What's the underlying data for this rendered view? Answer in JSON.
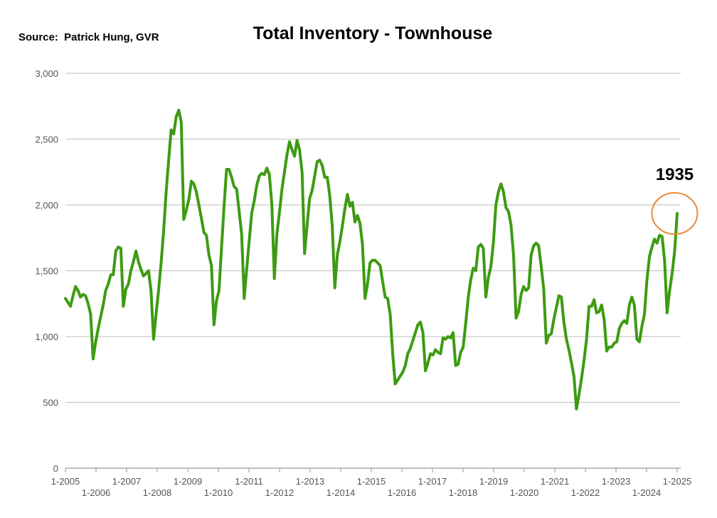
{
  "source": "Source:  Patrick Hung, GVR",
  "chart_data": {
    "type": "line",
    "title": "Total Inventory - Townhouse",
    "xlabel": "",
    "ylabel": "",
    "ylim": [
      0,
      3000
    ],
    "yticks": [
      0,
      500,
      1000,
      1500,
      2000,
      2500,
      3000
    ],
    "ytick_labels": [
      "0",
      "500",
      "1,000",
      "1,500",
      "2,000",
      "2,500",
      "3,000"
    ],
    "xlim": [
      0,
      243
    ],
    "xtick_labels": [
      "1-2005",
      "1-2006",
      "1-2007",
      "1-2008",
      "1-2009",
      "1-2010",
      "1-2011",
      "1-2012",
      "1-2013",
      "1-2014",
      "1-2015",
      "1-2016",
      "1-2017",
      "1-2018",
      "1-2019",
      "1-2020",
      "1-2021",
      "1-2022",
      "1-2023",
      "1-2024",
      "1-2025"
    ],
    "grid": true,
    "colors": {
      "line": "#3d9b12",
      "grid": "#c8c8c8",
      "callout": "#e98a3c"
    },
    "annotation": {
      "text": "1935",
      "x": 242,
      "y": 1935
    },
    "series": [
      {
        "values": [
          1290,
          1260,
          1230,
          1310,
          1380,
          1350,
          1300,
          1320,
          1310,
          1250,
          1170,
          830,
          960,
          1060,
          1150,
          1240,
          1350,
          1400,
          1470,
          1470,
          1650,
          1680,
          1670,
          1230,
          1360,
          1400,
          1500,
          1570,
          1650,
          1570,
          1510,
          1460,
          1480,
          1500,
          1350,
          980,
          1170,
          1350,
          1560,
          1800,
          2100,
          2340,
          2570,
          2540,
          2670,
          2720,
          2630,
          1890,
          1960,
          2040,
          2180,
          2160,
          2100,
          2000,
          1900,
          1790,
          1770,
          1620,
          1540,
          1090,
          1270,
          1350,
          1670,
          1990,
          2270,
          2270,
          2210,
          2140,
          2120,
          1950,
          1780,
          1290,
          1510,
          1730,
          1940,
          2030,
          2150,
          2220,
          2240,
          2230,
          2280,
          2230,
          2000,
          1440,
          1780,
          1940,
          2120,
          2250,
          2380,
          2480,
          2420,
          2370,
          2490,
          2420,
          2250,
          1630,
          1850,
          2050,
          2110,
          2220,
          2330,
          2340,
          2300,
          2210,
          2210,
          2070,
          1840,
          1370,
          1620,
          1720,
          1840,
          1970,
          2080,
          1990,
          2020,
          1870,
          1920,
          1860,
          1700,
          1290,
          1400,
          1560,
          1580,
          1580,
          1560,
          1540,
          1420,
          1300,
          1290,
          1170,
          870,
          640,
          670,
          700,
          730,
          780,
          870,
          910,
          970,
          1030,
          1090,
          1110,
          1030,
          740,
          800,
          870,
          860,
          900,
          880,
          870,
          990,
          980,
          1000,
          990,
          1030,
          780,
          790,
          880,
          920,
          1100,
          1300,
          1430,
          1520,
          1500,
          1680,
          1700,
          1670,
          1300,
          1450,
          1530,
          1710,
          2000,
          2100,
          2160,
          2100,
          1980,
          1950,
          1850,
          1620,
          1140,
          1190,
          1320,
          1380,
          1350,
          1370,
          1620,
          1690,
          1710,
          1690,
          1530,
          1360,
          950,
          1010,
          1020,
          1130,
          1220,
          1310,
          1300,
          1110,
          980,
          900,
          800,
          700,
          450,
          560,
          680,
          820,
          980,
          1230,
          1230,
          1280,
          1180,
          1190,
          1240,
          1130,
          890,
          920,
          920,
          950,
          960,
          1060,
          1100,
          1120,
          1100,
          1240,
          1300,
          1240,
          980,
          960,
          1080,
          1170,
          1430,
          1610,
          1680,
          1740,
          1710,
          1770,
          1760,
          1580,
          1180,
          1350,
          1480,
          1650,
          1935
        ]
      }
    ]
  }
}
